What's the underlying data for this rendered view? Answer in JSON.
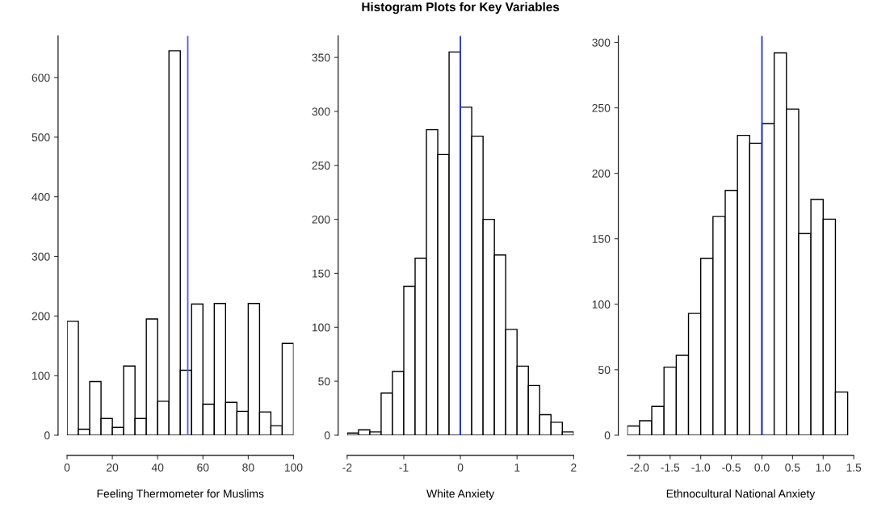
{
  "chart_data": [
    {
      "type": "histogram",
      "xlabel": "Feeling Thermometer for Muslims",
      "bins": [
        0,
        5,
        10,
        15,
        20,
        25,
        30,
        35,
        40,
        45,
        50,
        55,
        60,
        65,
        70,
        75,
        80,
        85,
        90,
        95,
        100
      ],
      "values": [
        191,
        10,
        90,
        28,
        13,
        116,
        28,
        195,
        57,
        645,
        109,
        220,
        52,
        221,
        55,
        40,
        221,
        39,
        16,
        154
      ],
      "color": "#ffffff",
      "xlim": [
        0,
        100
      ],
      "xticks": [
        0,
        20,
        40,
        60,
        80,
        100
      ],
      "ylim": [
        0,
        670
      ],
      "yticks": [
        0,
        100,
        200,
        300,
        400,
        500,
        600
      ],
      "ref_lines": [
        {
          "axis": "x",
          "value": 53.3,
          "color": "#4a5cf0"
        }
      ],
      "grid": false
    },
    {
      "type": "histogram",
      "title": "Histogram Plots for Key Variables",
      "xlabel": "White Anxiety",
      "bins": [
        -2,
        -1.8,
        -1.6,
        -1.4,
        -1.2,
        -1,
        -0.8,
        -0.6,
        -0.4,
        -0.2,
        0,
        0.2,
        0.4,
        0.6,
        0.8,
        1,
        1.2,
        1.4,
        1.6,
        1.8,
        2
      ],
      "values": [
        2,
        5,
        3,
        39,
        59,
        138,
        164,
        283,
        260,
        355,
        304,
        277,
        200,
        167,
        98,
        64,
        46,
        19,
        12,
        3
      ],
      "color": "#ffffff",
      "xlim": [
        -2,
        2
      ],
      "xticks": [
        -2,
        -1,
        0,
        1,
        2
      ],
      "ylim": [
        0,
        370
      ],
      "yticks": [
        0,
        50,
        100,
        150,
        200,
        250,
        300,
        350
      ],
      "ref_lines": [
        {
          "axis": "x",
          "value": 0,
          "color": "#2233ee"
        }
      ],
      "grid": false
    },
    {
      "type": "histogram",
      "xlabel": "Ethnocultural National Anxiety",
      "bins": [
        -2.2,
        -2,
        -1.8,
        -1.6,
        -1.4,
        -1.2,
        -1,
        -0.8,
        -0.6,
        -0.4,
        -0.2,
        0,
        0.2,
        0.4,
        0.6,
        0.8,
        1,
        1.2,
        1.4
      ],
      "values": [
        7,
        11,
        22,
        52,
        61,
        93,
        135,
        167,
        187,
        229,
        223,
        238,
        292,
        249,
        154,
        180,
        165,
        33
      ],
      "color": "#ffffff",
      "xlim": [
        -2.2,
        1.5
      ],
      "xticks": [
        {
          "value": -2,
          "label": "-2.0"
        },
        {
          "value": -1.5,
          "label": "-1.5"
        },
        {
          "value": -1,
          "label": "-1.0"
        },
        {
          "value": -0.5,
          "label": "-0.5"
        },
        {
          "value": 0,
          "label": "0.0"
        },
        {
          "value": 0.5,
          "label": "0.5"
        },
        {
          "value": 1,
          "label": "1.0"
        },
        {
          "value": 1.5,
          "label": "1.5"
        }
      ],
      "ylim": [
        0,
        305
      ],
      "yticks": [
        0,
        50,
        100,
        150,
        200,
        250,
        300
      ],
      "ref_lines": [
        {
          "axis": "x",
          "value": 0,
          "color": "#2233ee"
        }
      ],
      "grid": false
    }
  ]
}
